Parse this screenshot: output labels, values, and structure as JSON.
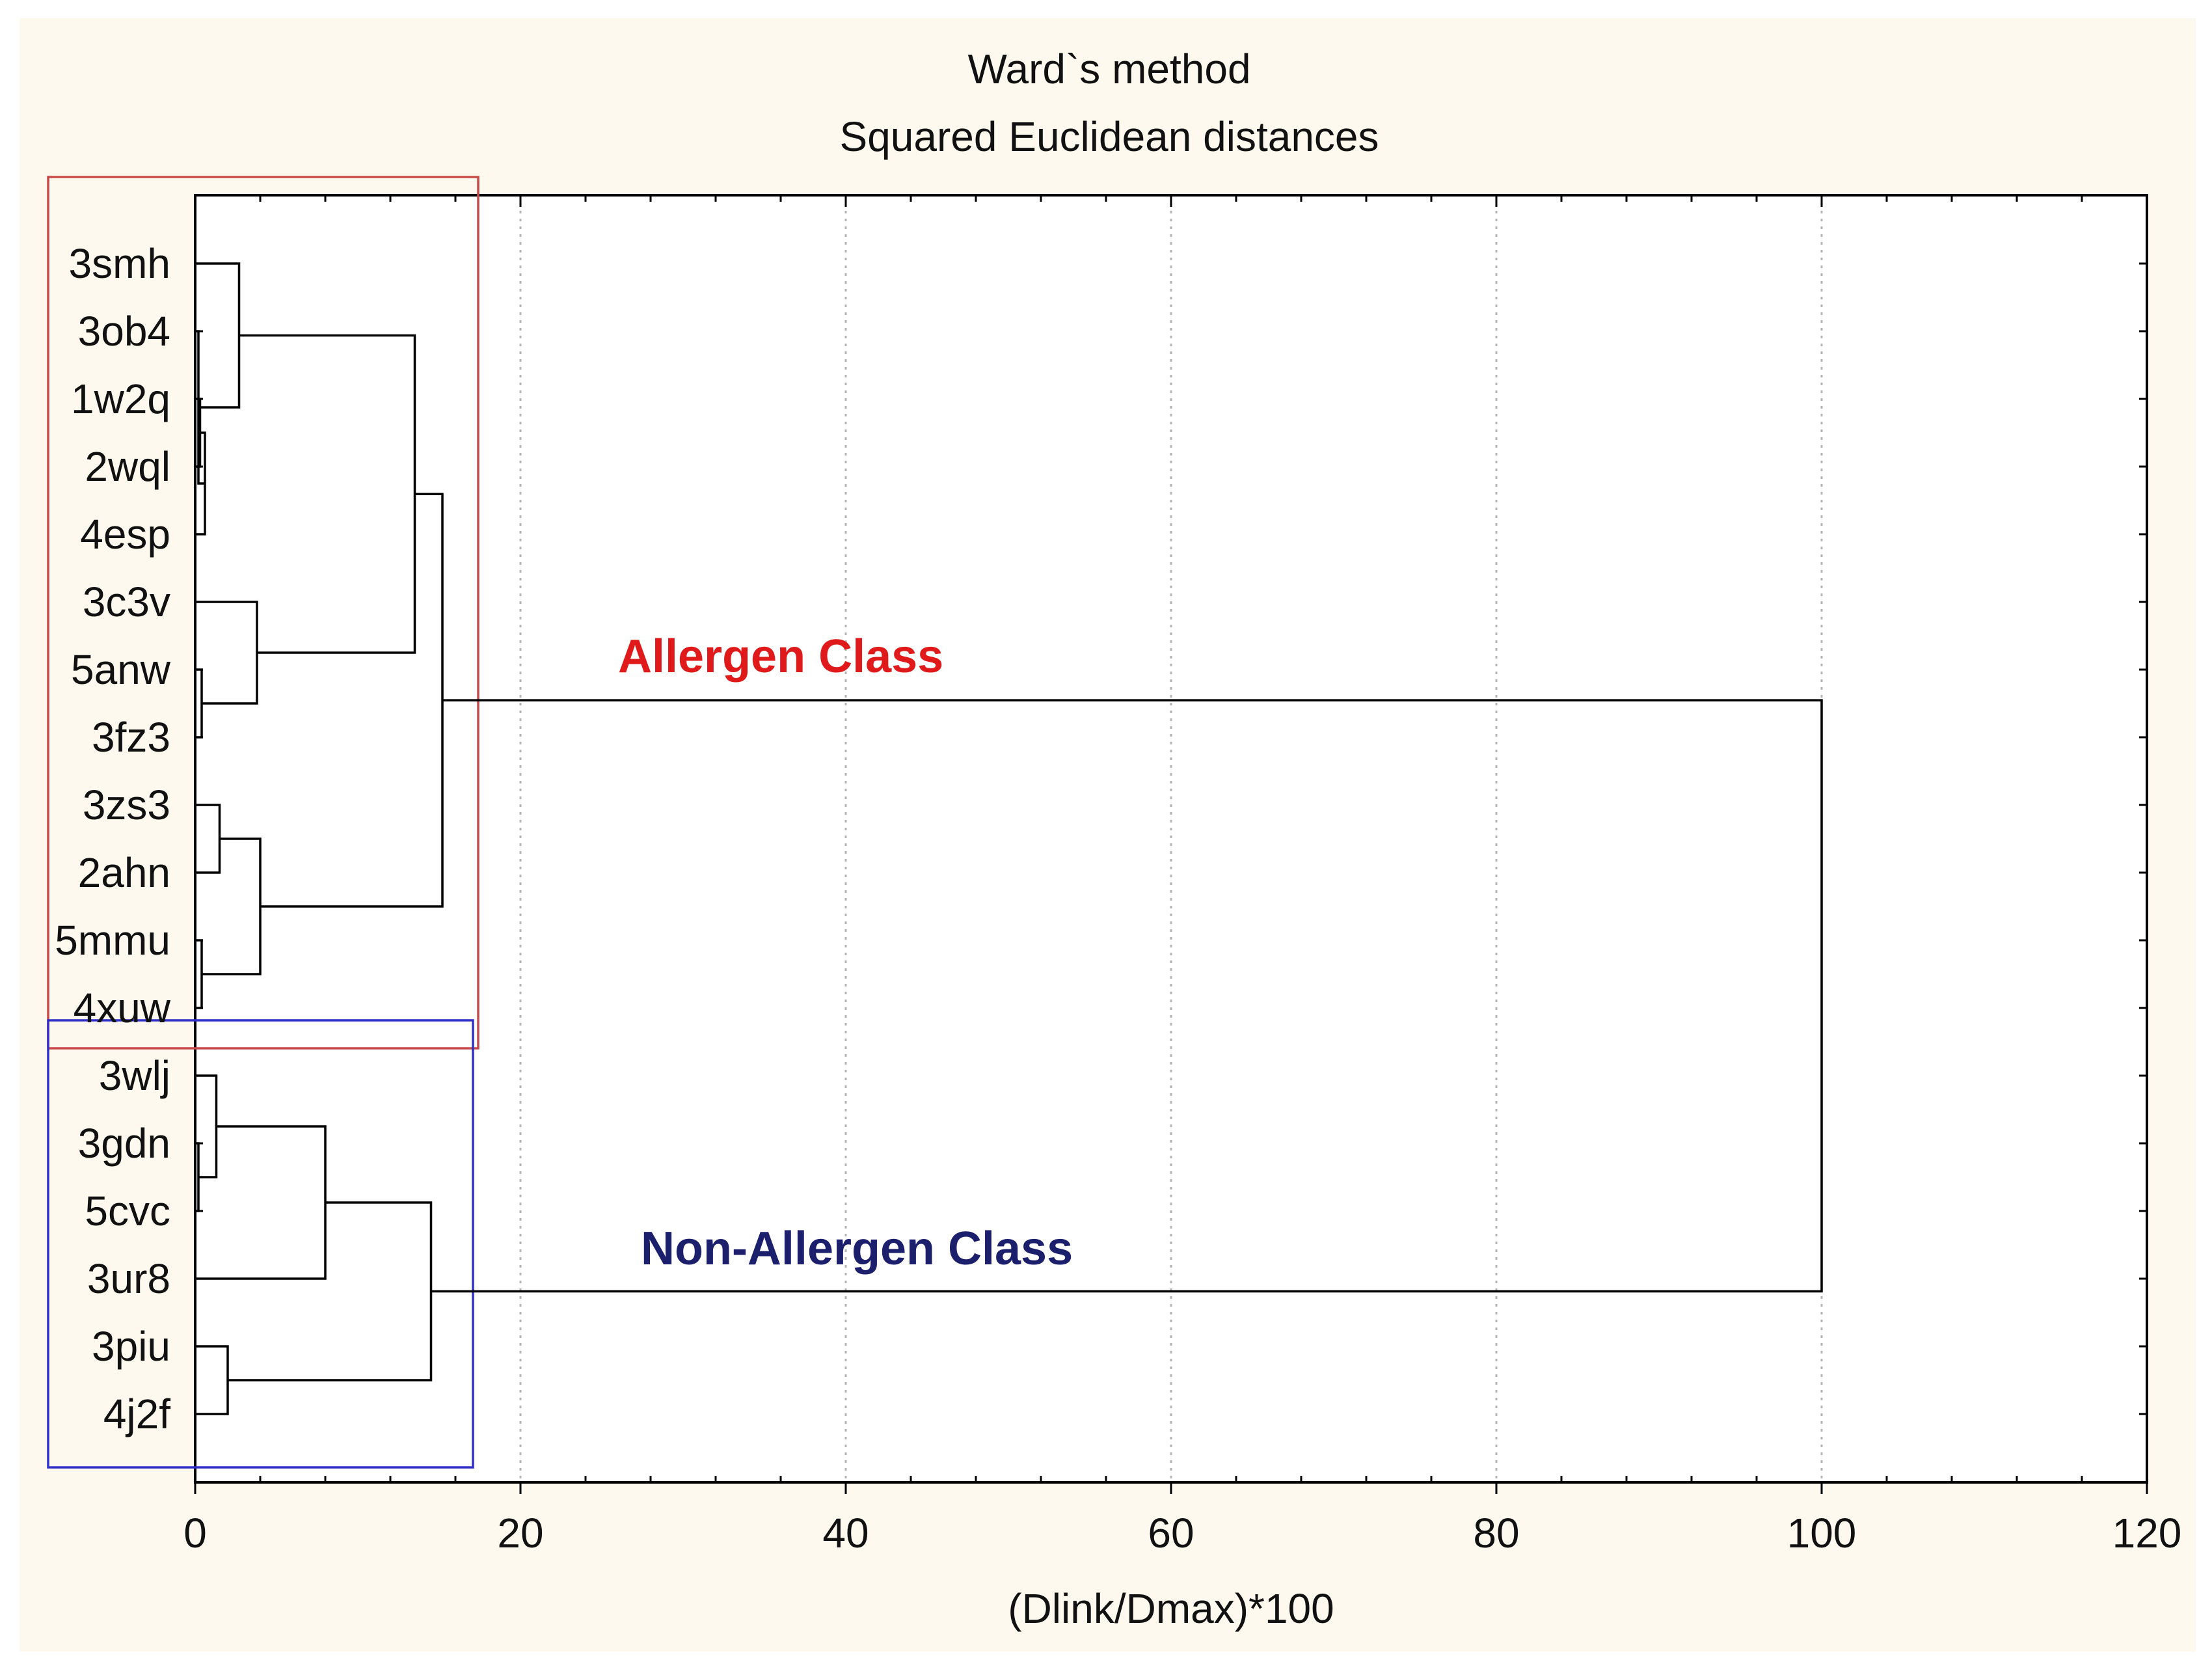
{
  "colors": {
    "background": "#fdf9ee",
    "plot_background": "#ffffff",
    "line": "#000000",
    "grid": "#b4b4b4",
    "allergen": "#e01a1a",
    "allergen_box": "#c84b4b",
    "non_allergen": "#1c1f6b",
    "non_allergen_box": "#3030c8"
  },
  "chart_data": {
    "type": "dendrogram",
    "title": "Ward`s method",
    "subtitle": "Squared Euclidean distances",
    "xlabel": "(Dlink/Dmax)*100",
    "xlim": [
      0,
      120
    ],
    "xticks": [
      0,
      20,
      40,
      60,
      80,
      100,
      120
    ],
    "grid": "vertical dotted",
    "leaves": [
      "3smh",
      "3ob4",
      "1w2q",
      "2wql",
      "4esp",
      "3c3v",
      "5anw",
      "3fz3",
      "3zs3",
      "2ahn",
      "5mmu",
      "4xuw",
      "3wlj",
      "3gdn",
      "5cvc",
      "3ur8",
      "3piu",
      "4j2f"
    ],
    "merges": [
      {
        "a": "L2",
        "b": "L3",
        "height": 0.3
      },
      {
        "a": "M1",
        "b": "L4",
        "height": 0.6
      },
      {
        "a": "L1",
        "b": "M2",
        "height": 0.2
      },
      {
        "a": "L0",
        "b": "M3",
        "height": 2.7
      },
      {
        "a": "L6",
        "b": "L7",
        "height": 0.4
      },
      {
        "a": "L5",
        "b": "M5",
        "height": 3.8
      },
      {
        "a": "M4",
        "b": "M6",
        "height": 13.5
      },
      {
        "a": "L8",
        "b": "L9",
        "height": 1.5
      },
      {
        "a": "L10",
        "b": "L11",
        "height": 0.4
      },
      {
        "a": "M8",
        "b": "M9",
        "height": 4.0
      },
      {
        "a": "M7",
        "b": "M10",
        "height": 15.2
      },
      {
        "a": "L13",
        "b": "L14",
        "height": 0.2
      },
      {
        "a": "L12",
        "b": "M12",
        "height": 1.3
      },
      {
        "a": "M13",
        "b": "L15",
        "height": 8.0
      },
      {
        "a": "L16",
        "b": "L17",
        "height": 2.0
      },
      {
        "a": "M14",
        "b": "M15",
        "height": 14.5
      },
      {
        "a": "M11",
        "b": "M16",
        "height": 100
      }
    ],
    "annotations": [
      {
        "text": "Allergen Class",
        "group": "allergen",
        "leaves": [
          "3smh",
          "3ob4",
          "1w2q",
          "2wql",
          "4esp",
          "3c3v",
          "5anw",
          "3fz3",
          "3zs3",
          "2ahn",
          "5mmu",
          "4xuw"
        ]
      },
      {
        "text": "Non-Allergen Class",
        "group": "non_allergen",
        "leaves": [
          "3wlj",
          "3gdn",
          "5cvc",
          "3ur8",
          "3piu",
          "4j2f"
        ]
      }
    ]
  }
}
